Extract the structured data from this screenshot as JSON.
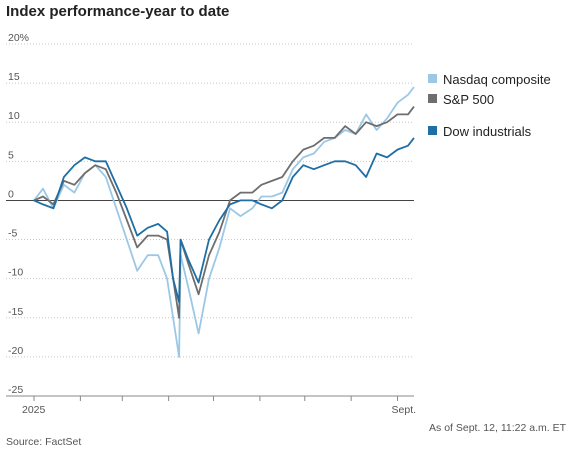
{
  "title": "Index performance-year to date",
  "source": "Source: FactSet",
  "timestamp": "As of Sept. 12, 11:22 a.m. ET",
  "chart_data": {
    "type": "line",
    "title": "Index performance-year to date",
    "xlabel": "",
    "ylabel": "",
    "ylim": [
      -25,
      20
    ],
    "y_ticks": [
      -25,
      -20,
      -15,
      -10,
      -5,
      0,
      5,
      10,
      15,
      20
    ],
    "y_tick_labels": [
      "-25",
      "-20",
      "-15",
      "-10",
      "-5",
      "0",
      "5",
      "10",
      "15",
      "20%"
    ],
    "x_tick_labels": [
      {
        "label": "2025",
        "x": "2025-01-01"
      },
      {
        "label": "Sept.",
        "x": "2025-09-01"
      }
    ],
    "x": [
      "2025-01-01",
      "2025-01-07",
      "2025-01-14",
      "2025-01-21",
      "2025-01-28",
      "2025-02-04",
      "2025-02-11",
      "2025-02-18",
      "2025-02-25",
      "2025-03-04",
      "2025-03-11",
      "2025-03-18",
      "2025-03-25",
      "2025-03-31",
      "2025-04-04",
      "2025-04-08",
      "2025-04-09",
      "2025-04-14",
      "2025-04-21",
      "2025-04-28",
      "2025-05-05",
      "2025-05-12",
      "2025-05-19",
      "2025-05-27",
      "2025-06-02",
      "2025-06-09",
      "2025-06-16",
      "2025-06-23",
      "2025-06-30",
      "2025-07-07",
      "2025-07-14",
      "2025-07-21",
      "2025-07-28",
      "2025-08-04",
      "2025-08-11",
      "2025-08-18",
      "2025-08-25",
      "2025-09-01",
      "2025-09-08",
      "2025-09-12"
    ],
    "series": [
      {
        "name": "Nasdaq composite",
        "color": "#9cc8e6",
        "values": [
          0.0,
          1.5,
          -1.0,
          2.0,
          1.0,
          3.5,
          4.5,
          3.0,
          -1.0,
          -5.0,
          -9.0,
          -7.0,
          -7.0,
          -10.0,
          -15.0,
          -20.0,
          -7.0,
          -11.0,
          -17.0,
          -10.0,
          -6.0,
          -1.0,
          -2.0,
          -1.0,
          0.5,
          0.5,
          1.0,
          4.0,
          5.5,
          6.0,
          7.5,
          8.0,
          9.0,
          8.5,
          11.0,
          9.0,
          10.5,
          12.5,
          13.5,
          14.5
        ]
      },
      {
        "name": "S&P 500",
        "color": "#6e6e6e",
        "values": [
          0.0,
          0.5,
          -0.5,
          2.5,
          2.0,
          3.5,
          4.5,
          4.0,
          1.0,
          -2.5,
          -6.0,
          -4.5,
          -4.5,
          -5.0,
          -10.0,
          -15.0,
          -5.0,
          -8.0,
          -12.0,
          -7.0,
          -4.0,
          0.0,
          1.0,
          1.0,
          2.0,
          2.5,
          3.0,
          5.0,
          6.5,
          7.0,
          8.0,
          8.0,
          9.5,
          8.5,
          10.0,
          9.5,
          10.0,
          11.0,
          11.0,
          12.0
        ]
      },
      {
        "name": "Dow industrials",
        "color": "#1f6ea4",
        "values": [
          0.0,
          -0.5,
          -1.0,
          3.0,
          4.5,
          5.5,
          5.0,
          5.0,
          2.0,
          -1.0,
          -4.5,
          -3.5,
          -3.0,
          -4.0,
          -10.0,
          -13.0,
          -5.0,
          -7.5,
          -10.5,
          -5.0,
          -2.5,
          -0.5,
          0.0,
          0.0,
          -0.5,
          -1.0,
          0.0,
          3.0,
          4.5,
          4.0,
          4.5,
          5.0,
          5.0,
          4.5,
          3.0,
          6.0,
          5.5,
          6.5,
          7.0,
          8.0
        ]
      }
    ],
    "legend": [
      {
        "label": "Nasdaq composite",
        "color": "#9cc8e6"
      },
      {
        "label": "S&P 500",
        "color": "#6e6e6e"
      },
      {
        "label": "Dow industrials",
        "color": "#1f6ea4"
      }
    ],
    "legend_position": "right",
    "grid": "horizontal-dotted"
  }
}
